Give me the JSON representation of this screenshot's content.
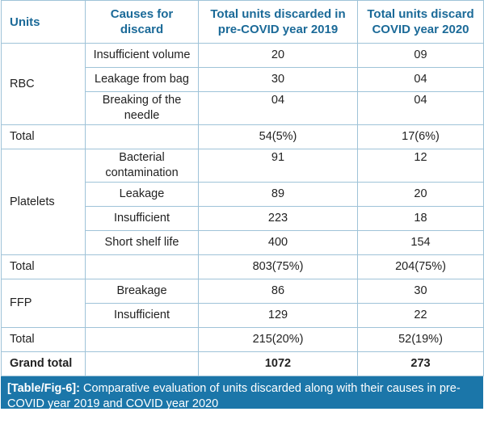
{
  "headers": [
    "Units",
    "Causes for discard",
    "Total units discarded in pre-COVID year 2019",
    "Total units discard COVID year 2020"
  ],
  "groups": [
    {
      "unit": "RBC",
      "rows": [
        {
          "cause": "Insufficient volume",
          "y2019": "20",
          "y2020": "09"
        },
        {
          "cause": "Leakage from bag",
          "y2019": "30",
          "y2020": "04"
        },
        {
          "cause": "Breaking of the needle",
          "y2019": "04",
          "y2020": "04"
        }
      ],
      "total": {
        "label": "Total",
        "y2019": "54(5%)",
        "y2020": "17(6%)"
      }
    },
    {
      "unit": "Platelets",
      "rows": [
        {
          "cause": "Bacterial contamination",
          "y2019": "91",
          "y2020": "12"
        },
        {
          "cause": "Leakage",
          "y2019": "89",
          "y2020": "20"
        },
        {
          "cause": "Insufficient",
          "y2019": "223",
          "y2020": "18"
        },
        {
          "cause": "Short shelf life",
          "y2019": "400",
          "y2020": "154"
        }
      ],
      "total": {
        "label": "Total",
        "y2019": "803(75%)",
        "y2020": "204(75%)"
      }
    },
    {
      "unit": "FFP",
      "rows": [
        {
          "cause": "Breakage",
          "y2019": "86",
          "y2020": "30"
        },
        {
          "cause": "Insufficient",
          "y2019": "129",
          "y2020": "22"
        }
      ],
      "total": {
        "label": "Total",
        "y2019": "215(20%)",
        "y2020": "52(19%)"
      }
    }
  ],
  "grand_total": {
    "label": "Grand total",
    "y2019": "1072",
    "y2020": "273"
  },
  "caption": {
    "label": "[Table/Fig-6]:",
    "text": " Comparative evaluation of units discarded along with their causes in pre-COVID year 2019 and COVID year 2020"
  },
  "colors": {
    "header_text": "#1b6a98",
    "border": "#9fc3d8",
    "caption_bg": "#1b76a9"
  }
}
